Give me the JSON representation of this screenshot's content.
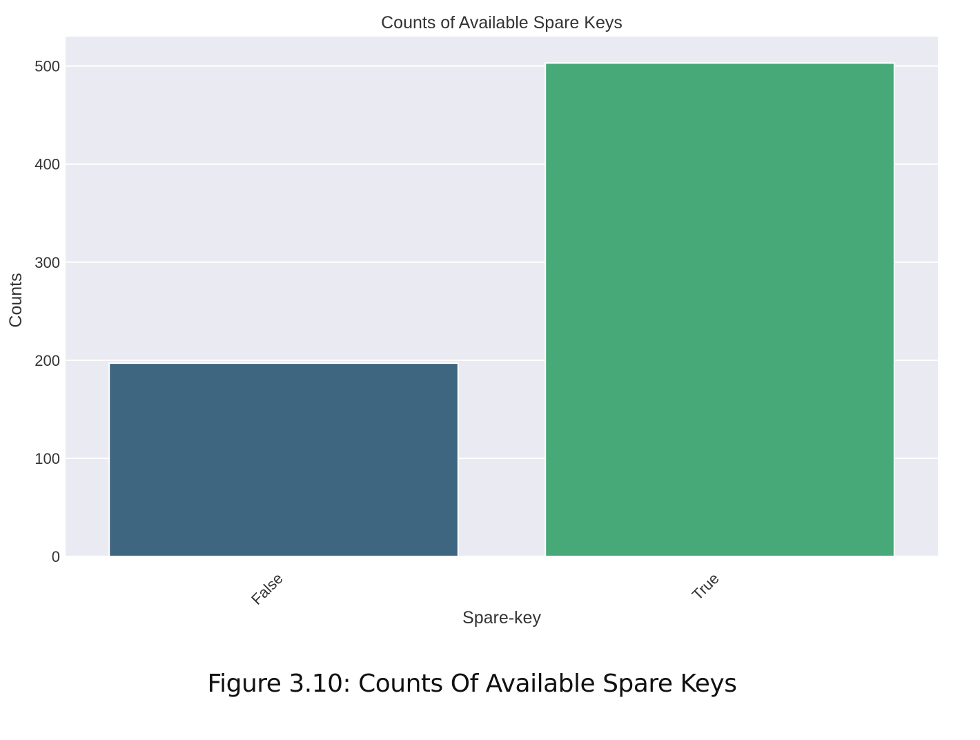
{
  "chart_data": {
    "type": "bar",
    "title": "Counts of Available Spare Keys",
    "xlabel": "Spare-key",
    "ylabel": "Counts",
    "categories": [
      "False",
      "True"
    ],
    "values": [
      197,
      503
    ],
    "colors": [
      "#3e6680",
      "#47a878"
    ],
    "ylim": [
      0,
      530
    ],
    "yticks": [
      0,
      100,
      200,
      300,
      400,
      500
    ],
    "grid": true,
    "background": "#eaeaf2"
  },
  "figure": {
    "caption": "Figure 3.10: Counts Of Available Spare Keys"
  }
}
